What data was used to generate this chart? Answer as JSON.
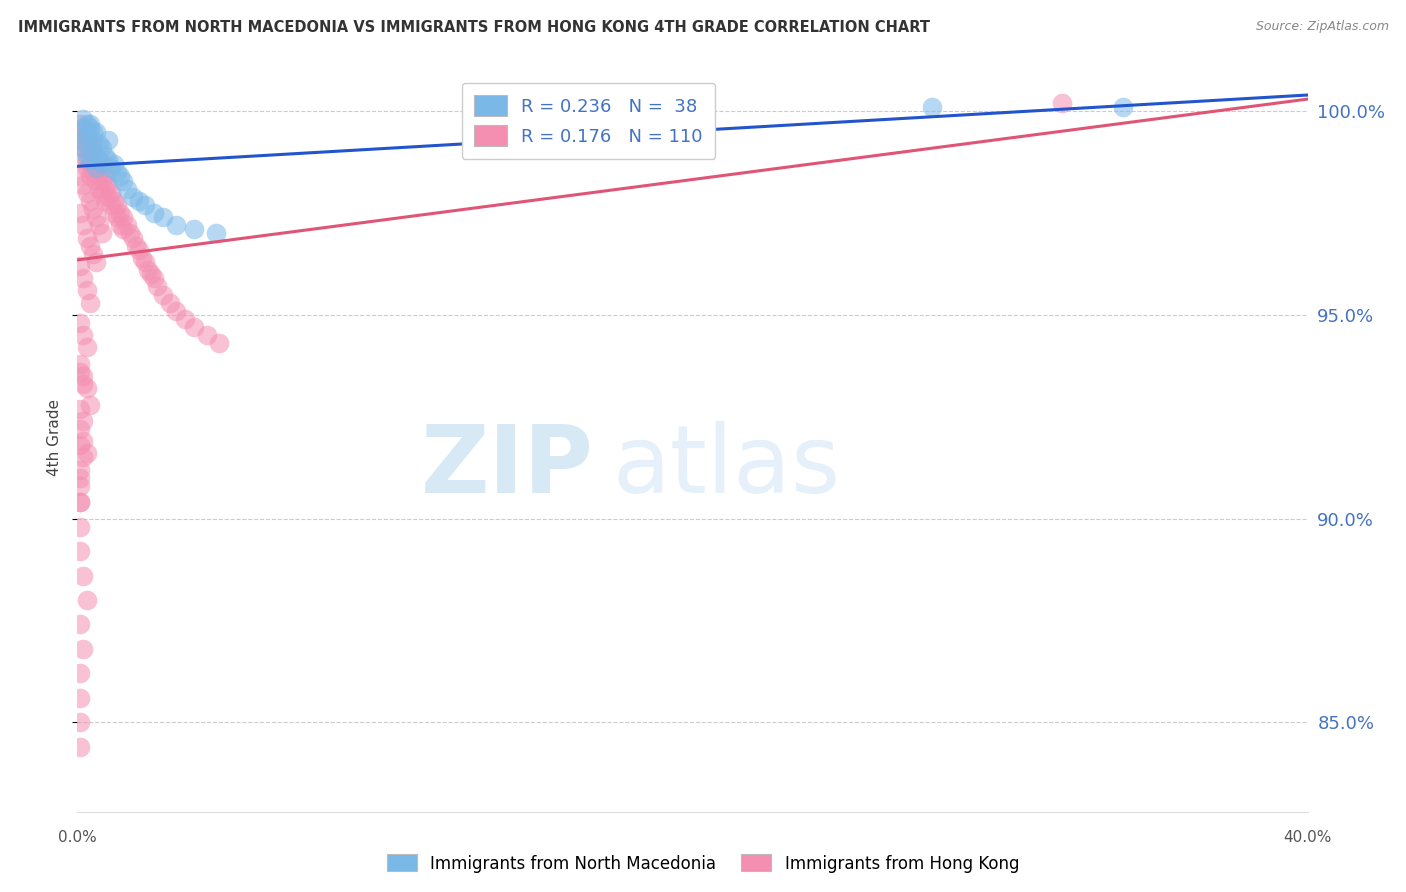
{
  "title": "IMMIGRANTS FROM NORTH MACEDONIA VS IMMIGRANTS FROM HONG KONG 4TH GRADE CORRELATION CHART",
  "source": "Source: ZipAtlas.com",
  "ylabel_label": "4th Grade",
  "ylabel_ticks": [
    "100.0%",
    "95.0%",
    "90.0%",
    "85.0%"
  ],
  "ylabel_values": [
    1.0,
    0.95,
    0.9,
    0.85
  ],
  "xlim": [
    0.0,
    0.4
  ],
  "ylim": [
    0.828,
    1.012
  ],
  "legend_blue_r": "0.236",
  "legend_blue_n": "38",
  "legend_pink_r": "0.176",
  "legend_pink_n": "110",
  "blue_color": "#7ab8e8",
  "pink_color": "#f48fb1",
  "blue_line_color": "#2255cc",
  "pink_line_color": "#e05575",
  "watermark_zip": "ZIP",
  "watermark_atlas": "atlas",
  "blue_line_x": [
    0.0,
    0.4
  ],
  "blue_line_y": [
    0.9865,
    1.004
  ],
  "pink_line_x": [
    0.0,
    0.4
  ],
  "pink_line_y": [
    0.9635,
    1.003
  ],
  "blue_scatter_x": [
    0.001,
    0.002,
    0.002,
    0.003,
    0.003,
    0.004,
    0.004,
    0.005,
    0.005,
    0.006,
    0.006,
    0.007,
    0.007,
    0.008,
    0.008,
    0.009,
    0.01,
    0.01,
    0.011,
    0.012,
    0.013,
    0.014,
    0.015,
    0.016,
    0.018,
    0.02,
    0.022,
    0.025,
    0.028,
    0.032,
    0.038,
    0.045,
    0.002,
    0.003,
    0.004,
    0.005,
    0.278,
    0.34
  ],
  "blue_scatter_y": [
    0.993,
    0.991,
    0.996,
    0.989,
    0.994,
    0.988,
    0.997,
    0.99,
    0.993,
    0.986,
    0.995,
    0.988,
    0.992,
    0.987,
    0.991,
    0.989,
    0.988,
    0.993,
    0.986,
    0.987,
    0.985,
    0.984,
    0.983,
    0.981,
    0.979,
    0.978,
    0.977,
    0.975,
    0.974,
    0.972,
    0.971,
    0.97,
    0.998,
    0.997,
    0.996,
    0.995,
    1.001,
    1.001
  ],
  "pink_scatter_x": [
    0.001,
    0.001,
    0.001,
    0.002,
    0.002,
    0.002,
    0.002,
    0.003,
    0.003,
    0.003,
    0.003,
    0.004,
    0.004,
    0.004,
    0.004,
    0.005,
    0.005,
    0.005,
    0.006,
    0.006,
    0.006,
    0.007,
    0.007,
    0.007,
    0.008,
    0.008,
    0.008,
    0.009,
    0.009,
    0.009,
    0.01,
    0.01,
    0.011,
    0.011,
    0.012,
    0.012,
    0.013,
    0.013,
    0.014,
    0.014,
    0.015,
    0.015,
    0.016,
    0.017,
    0.018,
    0.019,
    0.02,
    0.021,
    0.022,
    0.023,
    0.024,
    0.025,
    0.026,
    0.028,
    0.03,
    0.032,
    0.035,
    0.038,
    0.042,
    0.046,
    0.001,
    0.002,
    0.003,
    0.004,
    0.005,
    0.006,
    0.007,
    0.008,
    0.001,
    0.002,
    0.003,
    0.004,
    0.005,
    0.006,
    0.001,
    0.002,
    0.003,
    0.004,
    0.001,
    0.002,
    0.003,
    0.001,
    0.002,
    0.001,
    0.002,
    0.001,
    0.002,
    0.001,
    0.001,
    0.001,
    0.001,
    0.002,
    0.003,
    0.001,
    0.002,
    0.001,
    0.001,
    0.001,
    0.001,
    0.32,
    0.001,
    0.002,
    0.003,
    0.004,
    0.001,
    0.002,
    0.003,
    0.001,
    0.001,
    0.001
  ],
  "pink_scatter_y": [
    0.997,
    0.995,
    0.993,
    0.996,
    0.994,
    0.991,
    0.989,
    0.995,
    0.992,
    0.988,
    0.986,
    0.993,
    0.99,
    0.987,
    0.984,
    0.991,
    0.988,
    0.985,
    0.989,
    0.986,
    0.983,
    0.987,
    0.984,
    0.981,
    0.986,
    0.983,
    0.98,
    0.984,
    0.981,
    0.978,
    0.982,
    0.979,
    0.98,
    0.977,
    0.978,
    0.975,
    0.977,
    0.974,
    0.975,
    0.972,
    0.974,
    0.971,
    0.972,
    0.97,
    0.969,
    0.967,
    0.966,
    0.964,
    0.963,
    0.961,
    0.96,
    0.959,
    0.957,
    0.955,
    0.953,
    0.951,
    0.949,
    0.947,
    0.945,
    0.943,
    0.984,
    0.982,
    0.98,
    0.978,
    0.976,
    0.974,
    0.972,
    0.97,
    0.975,
    0.972,
    0.969,
    0.967,
    0.965,
    0.963,
    0.962,
    0.959,
    0.956,
    0.953,
    0.948,
    0.945,
    0.942,
    0.936,
    0.933,
    0.927,
    0.924,
    0.918,
    0.915,
    0.91,
    0.904,
    0.898,
    0.892,
    0.886,
    0.88,
    0.874,
    0.868,
    0.862,
    0.856,
    0.85,
    0.844,
    1.002,
    0.938,
    0.935,
    0.932,
    0.928,
    0.922,
    0.919,
    0.916,
    0.912,
    0.908,
    0.904
  ]
}
